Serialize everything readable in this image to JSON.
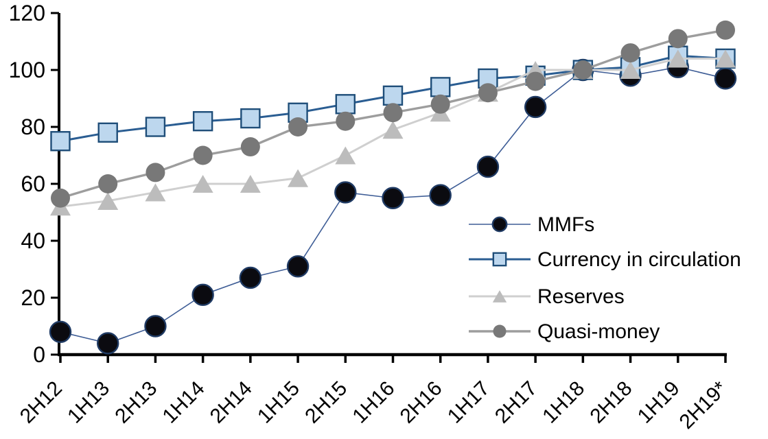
{
  "chart_data": {
    "type": "line",
    "title": "",
    "xlabel": "",
    "ylabel": "",
    "ylim": [
      0,
      120
    ],
    "y_ticks": [
      0,
      20,
      40,
      60,
      80,
      100,
      120
    ],
    "grid": false,
    "legend_position": "middle-right",
    "x_categories": [
      "2H12",
      "1H13",
      "2H13",
      "1H14",
      "2H14",
      "1H15",
      "2H15",
      "1H16",
      "2H16",
      "1H17",
      "2H17",
      "1H18",
      "2H18",
      "1H19",
      "2H19*"
    ],
    "series": [
      {
        "name": "MMFs",
        "marker": "circle",
        "marker_size": 30,
        "marker_color": "#0b0b10",
        "marker_stroke": "#1f3a63",
        "line_color": "#3e5d96",
        "line_width": 1.6,
        "values": [
          8,
          4,
          10,
          21,
          27,
          31,
          57,
          55,
          56,
          66,
          87,
          100,
          98,
          101,
          97
        ]
      },
      {
        "name": "Currency in circulation",
        "marker": "square",
        "marker_size": 27,
        "marker_color": "#bdd7ee",
        "marker_stroke": "#1f4e79",
        "line_color": "#2a5d92",
        "line_width": 3,
        "values": [
          75,
          78,
          80,
          82,
          83,
          85,
          88,
          91,
          94,
          97,
          98,
          100,
          101,
          105,
          104
        ]
      },
      {
        "name": "Reserves",
        "marker": "triangle",
        "marker_size": 30,
        "marker_color": "#bcbcbc",
        "marker_stroke": "none",
        "line_color": "#cfcfcf",
        "line_width": 3,
        "values": [
          52,
          54,
          57,
          60,
          60,
          62,
          70,
          79,
          85,
          92,
          100,
          100,
          100,
          104,
          104
        ]
      },
      {
        "name": "Quasi-money",
        "marker": "circle",
        "marker_size": 28,
        "marker_color": "#787878",
        "marker_stroke": "none",
        "line_color": "#9d9d9d",
        "line_width": 3.4,
        "values": [
          55,
          60,
          64,
          70,
          73,
          80,
          82,
          85,
          88,
          92,
          96,
          100,
          106,
          111,
          114
        ]
      }
    ],
    "axis_color": "#000000"
  }
}
